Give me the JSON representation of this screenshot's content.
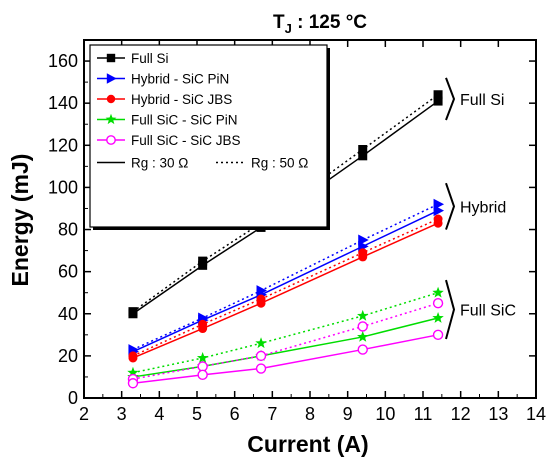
{
  "chart_data": {
    "type": "line",
    "title": "T_J : 125 °C",
    "title_parts": {
      "main": "T",
      "sub": "J",
      "rest": " : 125 °C"
    },
    "xlabel": "Current (A)",
    "ylabel": "Energy (mJ)",
    "xlim": [
      2,
      14
    ],
    "ylim": [
      0,
      170
    ],
    "xticks": [
      2,
      3,
      4,
      5,
      6,
      7,
      8,
      9,
      10,
      11,
      12,
      13,
      14
    ],
    "yticks": [
      0,
      20,
      40,
      60,
      80,
      100,
      120,
      140,
      160
    ],
    "grid": false,
    "legend_placement": "top-left",
    "x": [
      3.3,
      5.15,
      6.7,
      9.4,
      11.4
    ],
    "series": [
      {
        "name": "Full Si",
        "color": "#000000",
        "marker": "square",
        "rg30": [
          40,
          63,
          81,
          115,
          141
        ],
        "rg50": [
          41,
          65,
          83,
          118,
          144
        ]
      },
      {
        "name": "Hybrid - SiC PiN",
        "color": "#0000ff",
        "marker": "triangle-right",
        "rg30": [
          22,
          37,
          49,
          72,
          89
        ],
        "rg50": [
          23,
          38,
          51,
          75,
          92
        ]
      },
      {
        "name": "Hybrid - SiC JBS",
        "color": "#ff0000",
        "marker": "circle-filled",
        "rg30": [
          19,
          33,
          45,
          67,
          83
        ],
        "rg50": [
          20,
          35,
          47,
          69,
          85
        ]
      },
      {
        "name": "Full SiC - SiC PiN",
        "color": "#00dd00",
        "marker": "star",
        "rg30": [
          10,
          15,
          20,
          29,
          38
        ],
        "rg50": [
          12,
          19,
          26,
          39,
          50
        ]
      },
      {
        "name": "Full SiC - SiC JBS",
        "color": "#ff00ff",
        "marker": "circle-open",
        "rg30": [
          7,
          11,
          14,
          23,
          30
        ],
        "rg50": [
          9,
          15,
          20,
          34,
          45
        ]
      }
    ],
    "line_styles": [
      {
        "label": "Rg : 30 Ω",
        "style": "solid"
      },
      {
        "label": "Rg : 50 Ω",
        "style": "dotted"
      }
    ],
    "annotations": [
      {
        "text": "Full Si",
        "y_range": [
          132,
          152
        ]
      },
      {
        "text": "Hybrid",
        "y_range": [
          80,
          102
        ]
      },
      {
        "text": "Full SiC",
        "y_range": [
          28,
          56
        ]
      }
    ]
  }
}
